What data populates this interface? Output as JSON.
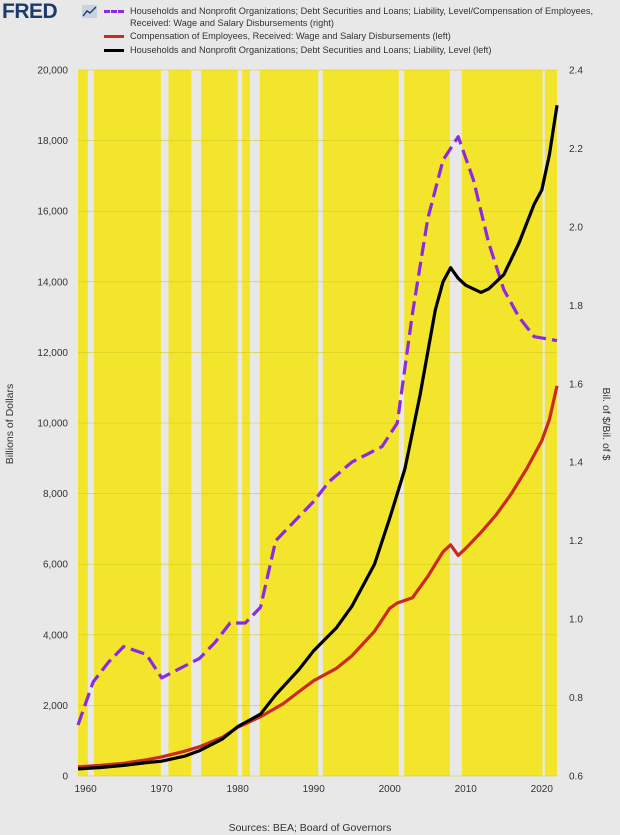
{
  "logo": {
    "text": "FRED",
    "mark_icon": "fred-chart-icon"
  },
  "legend": [
    {
      "label": "Households and Nonprofit Organizations; Debt Securities and Loans; Liability, Level/Compensation of Employees, Received: Wage and Salary Disbursements (right)",
      "color": "#8a2be2",
      "style": "dashed"
    },
    {
      "label": "Compensation of Employees, Received: Wage and Salary Disbursements (left)",
      "color": "#cc2a1e",
      "style": "solid"
    },
    {
      "label": "Households and Nonprofit Organizations; Debt Securities and Loans; Liability, Level (left)",
      "color": "#000000",
      "style": "solid"
    }
  ],
  "axes": {
    "left_title": "Billions of Dollars",
    "right_title": "Bil. of $/Bil. of $",
    "sources": "Sources: BEA; Board of Governors"
  },
  "chart_data": {
    "type": "line",
    "xlim": [
      1959,
      2022
    ],
    "ylim_left": [
      0,
      20000
    ],
    "ylim_right": [
      0.6,
      2.4
    ],
    "x_ticks": [
      1960,
      1970,
      1980,
      1990,
      2000,
      2010,
      2020
    ],
    "y_ticks_left": [
      "0",
      "2,000",
      "4,000",
      "6,000",
      "8,000",
      "10,000",
      "12,000",
      "14,000",
      "16,000",
      "18,000",
      "20,000"
    ],
    "y_ticks_left_values": [
      0,
      2000,
      4000,
      6000,
      8000,
      10000,
      12000,
      14000,
      16000,
      18000,
      20000
    ],
    "y_ticks_right": [
      "0.6",
      "0.8",
      "1.0",
      "1.2",
      "1.4",
      "1.6",
      "1.8",
      "2.0",
      "2.2",
      "2.4"
    ],
    "y_ticks_right_values": [
      0.6,
      0.8,
      1.0,
      1.2,
      1.4,
      1.6,
      1.8,
      2.0,
      2.2,
      2.4
    ],
    "background_color": "#f2e52c",
    "recession_bands": [
      [
        1960.3,
        1961.1
      ],
      [
        1969.9,
        1970.9
      ],
      [
        1973.9,
        1975.2
      ],
      [
        1980.0,
        1980.6
      ],
      [
        1981.6,
        1982.9
      ],
      [
        1990.6,
        1991.2
      ],
      [
        2001.2,
        2001.9
      ],
      [
        2007.9,
        2009.5
      ],
      [
        2020.1,
        2020.4
      ]
    ],
    "series": [
      {
        "name": "Households and Nonprofit Organizations; Debt Securities and Loans; Liability, Level/Compensation of Employees, Received: Wage and Salary Disbursements (right)",
        "axis": "right",
        "color": "#8a2be2",
        "dash": true,
        "x": [
          1959,
          1961,
          1963,
          1965,
          1968,
          1970,
          1972,
          1975,
          1977,
          1979,
          1981,
          1983,
          1985,
          1988,
          1990,
          1992,
          1995,
          1997,
          1999,
          2001,
          2003,
          2005,
          2007,
          2009,
          2011,
          2013,
          2015,
          2017,
          2019,
          2022
        ],
        "y": [
          0.73,
          0.84,
          0.89,
          0.93,
          0.91,
          0.85,
          0.87,
          0.9,
          0.94,
          0.99,
          0.99,
          1.03,
          1.2,
          1.26,
          1.3,
          1.35,
          1.4,
          1.42,
          1.44,
          1.5,
          1.78,
          2.02,
          2.17,
          2.23,
          2.12,
          1.96,
          1.84,
          1.77,
          1.72,
          1.71
        ]
      },
      {
        "name": "Compensation of Employees, Received: Wage and Salary Disbursements (left)",
        "axis": "left",
        "color": "#cc2a1e",
        "dash": false,
        "x": [
          1959,
          1962,
          1965,
          1968,
          1970,
          1973,
          1975,
          1978,
          1980,
          1983,
          1986,
          1988,
          1990,
          1993,
          1995,
          1998,
          2000,
          2001,
          2003,
          2005,
          2007,
          2008,
          2009,
          2010,
          2012,
          2014,
          2016,
          2018,
          2020,
          2021,
          2022
        ],
        "y": [
          260,
          300,
          360,
          460,
          540,
          700,
          830,
          1100,
          1380,
          1680,
          2050,
          2380,
          2700,
          3050,
          3400,
          4100,
          4750,
          4900,
          5050,
          5650,
          6350,
          6550,
          6250,
          6450,
          6900,
          7400,
          8000,
          8700,
          9500,
          10100,
          11050
        ]
      },
      {
        "name": "Households and Nonprofit Organizations; Debt Securities and Loans; Liability, Level (left)",
        "axis": "left",
        "color": "#000000",
        "dash": false,
        "x": [
          1959,
          1962,
          1965,
          1968,
          1970,
          1973,
          1975,
          1978,
          1980,
          1983,
          1985,
          1988,
          1990,
          1993,
          1995,
          1998,
          2000,
          2002,
          2004,
          2006,
          2007,
          2008,
          2009,
          2010,
          2012,
          2013,
          2015,
          2017,
          2019,
          2020,
          2021,
          2022
        ],
        "y": [
          200,
          240,
          300,
          380,
          420,
          560,
          720,
          1050,
          1400,
          1750,
          2300,
          3000,
          3550,
          4200,
          4800,
          6000,
          7300,
          8700,
          10800,
          13200,
          14000,
          14400,
          14100,
          13900,
          13700,
          13800,
          14200,
          15100,
          16200,
          16600,
          17600,
          19000
        ]
      }
    ]
  }
}
